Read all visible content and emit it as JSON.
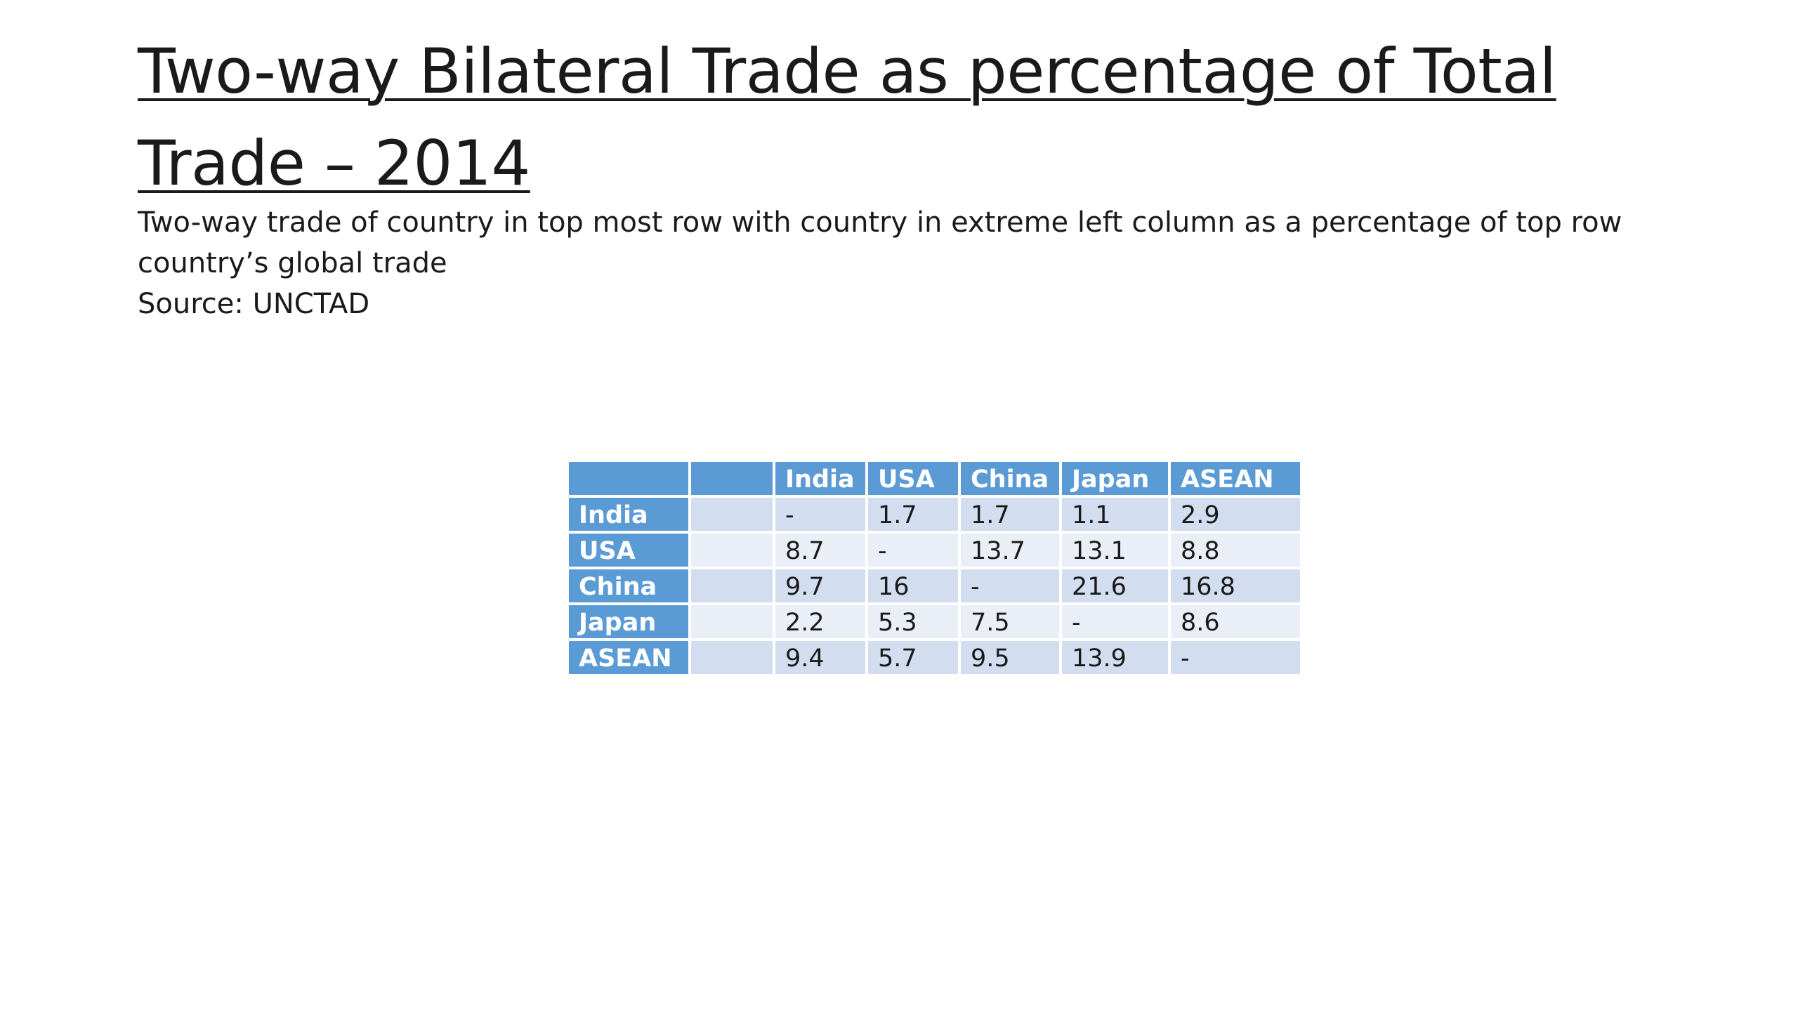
{
  "slide": {
    "title_line1": "Two-way Bilateral Trade as percentage of Total",
    "title_line2": "Trade – 2014",
    "description_line1": "Two-way trade of country in top most row with country in extreme left column as a percentage of top row",
    "description_line2": "country’s global trade",
    "source": "Source: UNCTAD"
  },
  "table": {
    "columns": [
      "",
      "",
      "India",
      "USA",
      "China",
      "Japan",
      "ASEAN"
    ],
    "rows": [
      {
        "label": "India",
        "values": [
          "",
          "-",
          "1.7",
          "1.7",
          "1.1",
          "2.9"
        ]
      },
      {
        "label": "USA",
        "values": [
          "",
          "8.7",
          "-",
          "13.7",
          "13.1",
          "8.8"
        ]
      },
      {
        "label": "China",
        "values": [
          "",
          "9.7",
          "16",
          "-",
          "21.6",
          "16.8"
        ]
      },
      {
        "label": "Japan",
        "values": [
          "",
          "2.2",
          "5.3",
          "7.5",
          "-",
          "8.6"
        ]
      },
      {
        "label": "ASEAN",
        "values": [
          "",
          "9.4",
          "5.7",
          "9.5",
          "13.9",
          "-"
        ]
      }
    ]
  },
  "colors": {
    "header_blue": "#5b9bd5",
    "band_dark": "#d2deef",
    "band_light": "#eaeff7"
  }
}
